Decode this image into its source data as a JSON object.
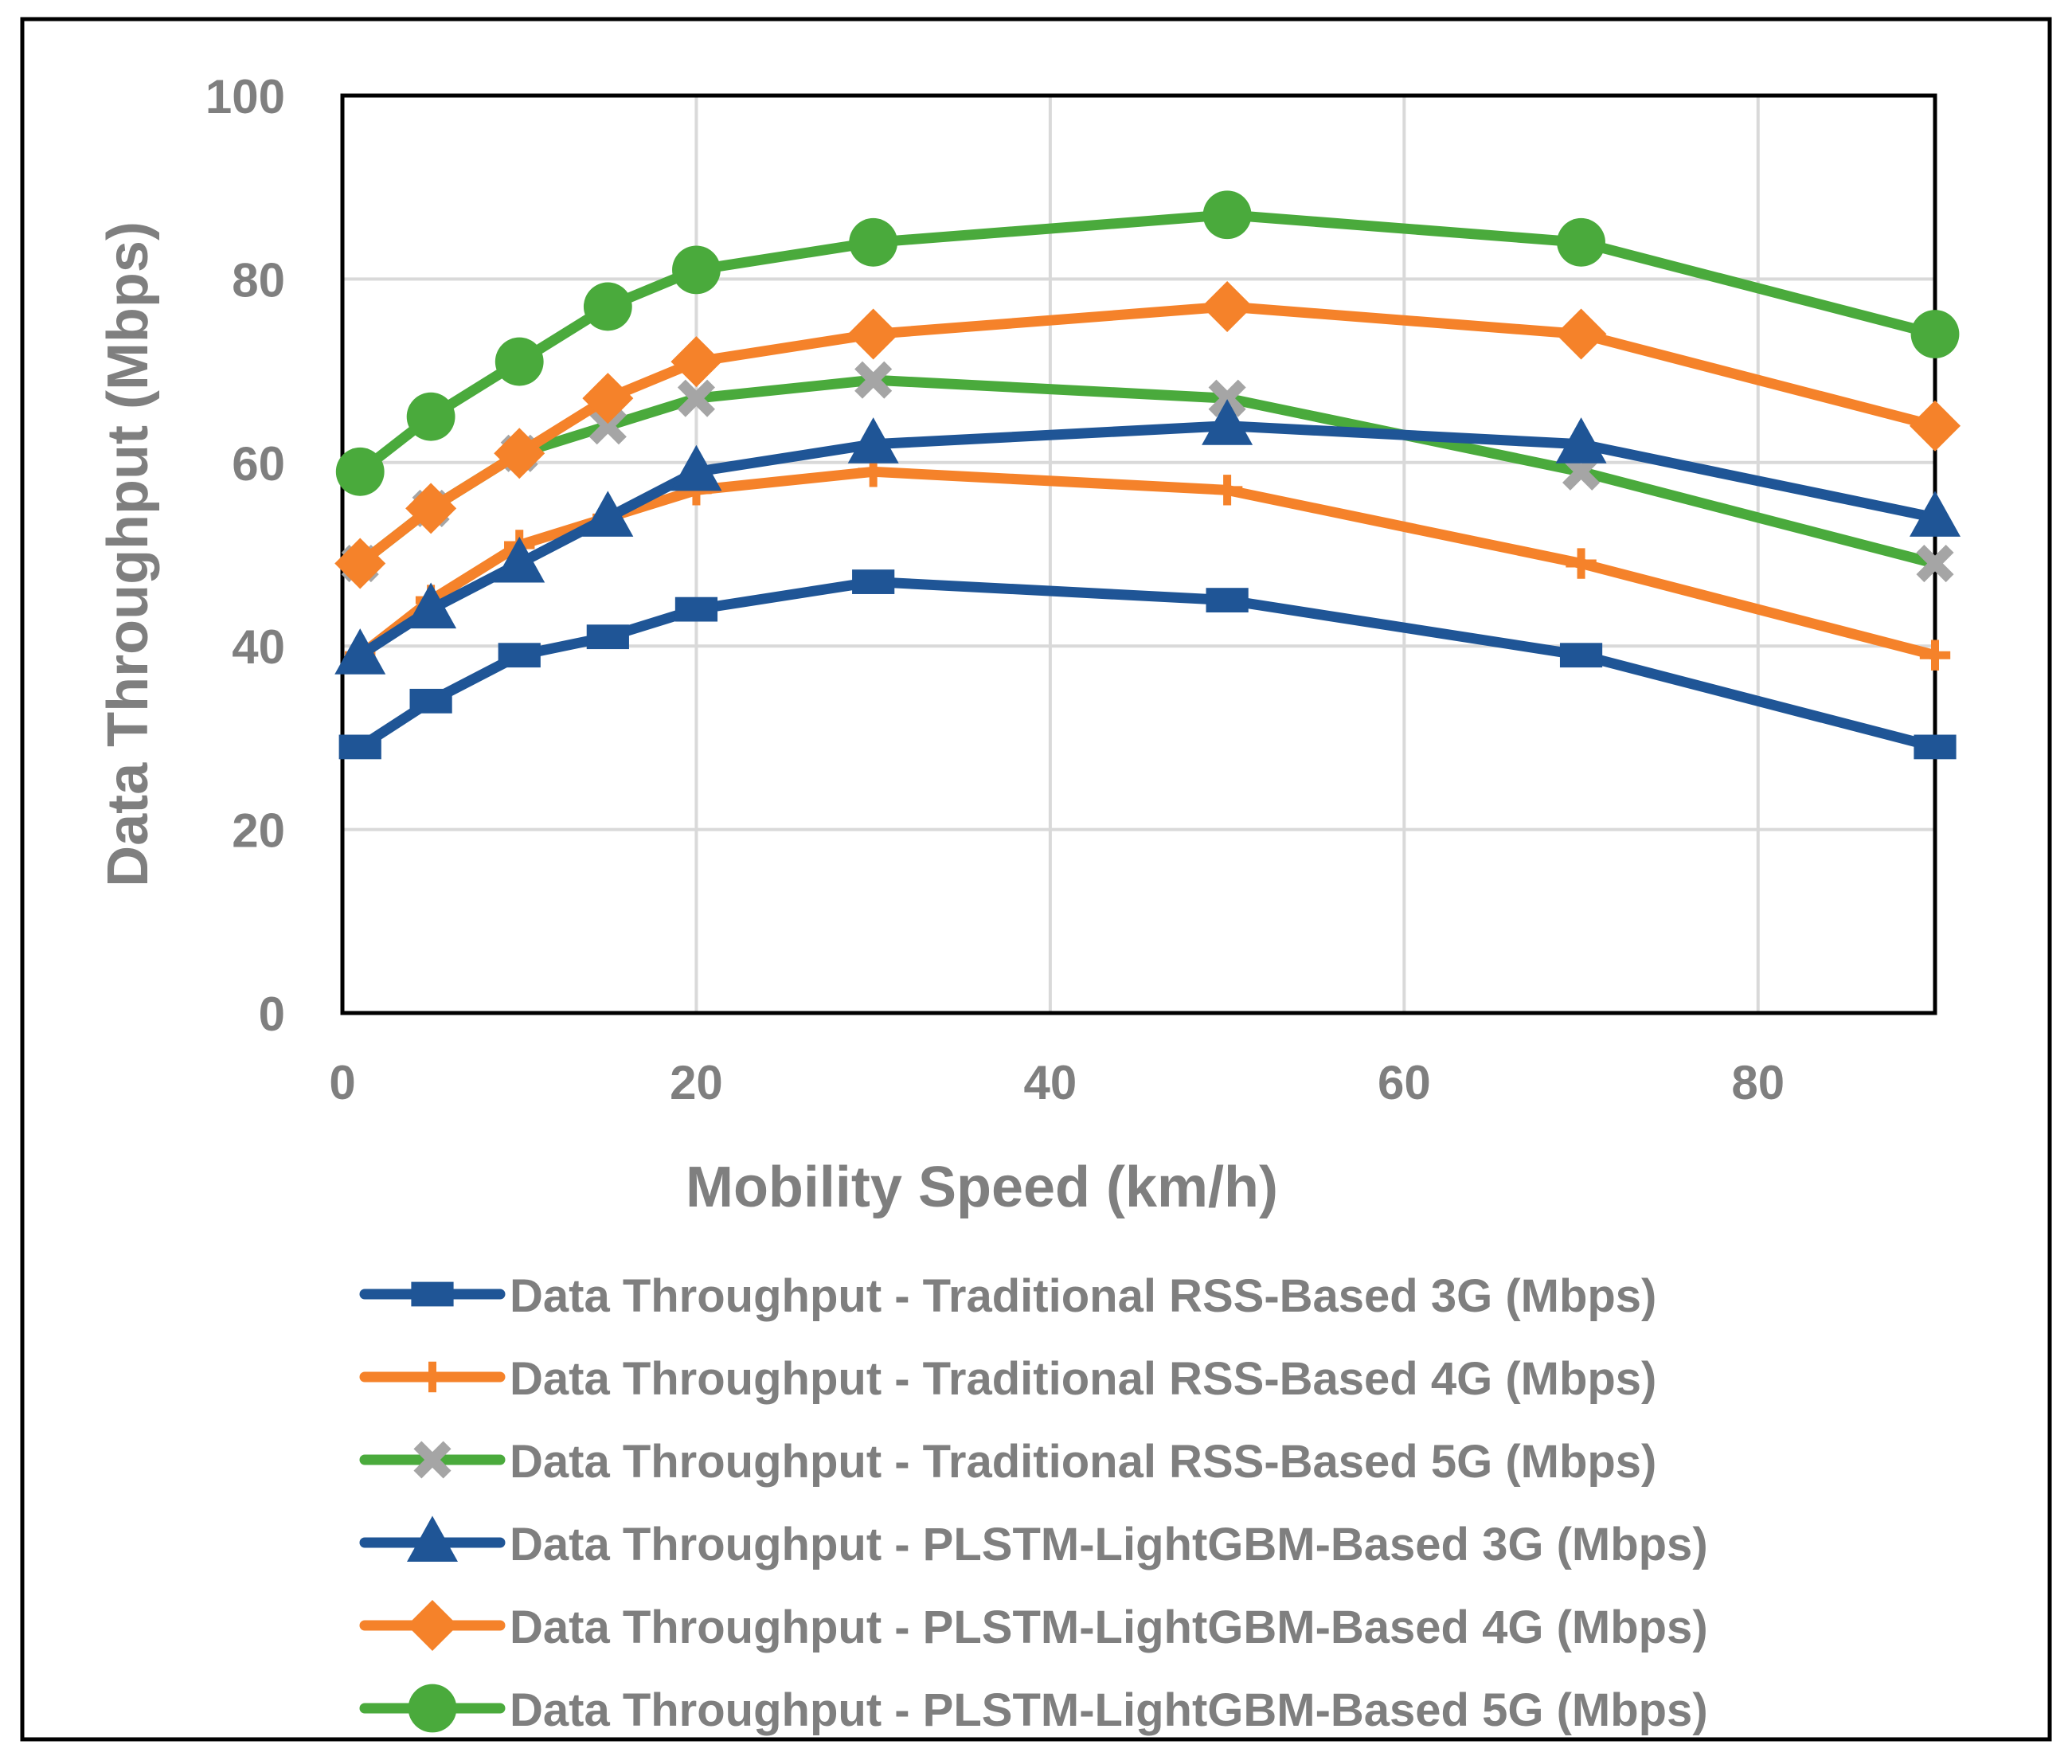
{
  "chart_data": {
    "type": "line",
    "xlabel": "Mobility Speed (km/h)",
    "ylabel": "Data Throughput (Mbps)",
    "xlim": [
      0,
      90
    ],
    "ylim": [
      0,
      100
    ],
    "xticks": [
      0,
      20,
      40,
      60,
      80
    ],
    "yticks": [
      0,
      20,
      40,
      60,
      80,
      100
    ],
    "grid": true,
    "legend_position": "bottom",
    "x": [
      1,
      5,
      10,
      15,
      20,
      30,
      50,
      70,
      90
    ],
    "series": [
      {
        "name": "Data Throughput - Traditional RSS-Based 3G (Mbps)",
        "values": [
          29,
          34,
          39,
          41,
          44,
          47,
          45,
          39,
          29
        ],
        "color": "#1f5596",
        "marker": "square"
      },
      {
        "name": "Data Throughput - Traditional RSS-Based 4G (Mbps)",
        "values": [
          39,
          45,
          51,
          54,
          57,
          59,
          57,
          49,
          39
        ],
        "color": "#f5822a",
        "marker": "plus"
      },
      {
        "name": "Data Throughput - Traditional RSS-Based 5G (Mbps)",
        "values": [
          49,
          55,
          61,
          64,
          67,
          69,
          67,
          59,
          49
        ],
        "color": "#4aaa3c",
        "marker": "x",
        "marker_color": "#a5a5a5"
      },
      {
        "name": "Data Throughput - PLSTM-LightGBM-Based 3G (Mbps)",
        "values": [
          39,
          44,
          49,
          54,
          59,
          62,
          64,
          62,
          54
        ],
        "color": "#1f5596",
        "marker": "triangle"
      },
      {
        "name": "Data Throughput - PLSTM-LightGBM-Based 4G (Mbps)",
        "values": [
          49,
          55,
          61,
          67,
          71,
          74,
          77,
          74,
          64
        ],
        "color": "#f5822a",
        "marker": "diamond"
      },
      {
        "name": "Data Throughput - PLSTM-LightGBM-Based 5G (Mbps)",
        "values": [
          59,
          65,
          71,
          77,
          81,
          84,
          87,
          84,
          74
        ],
        "color": "#4aaa3c",
        "marker": "circle"
      }
    ]
  }
}
